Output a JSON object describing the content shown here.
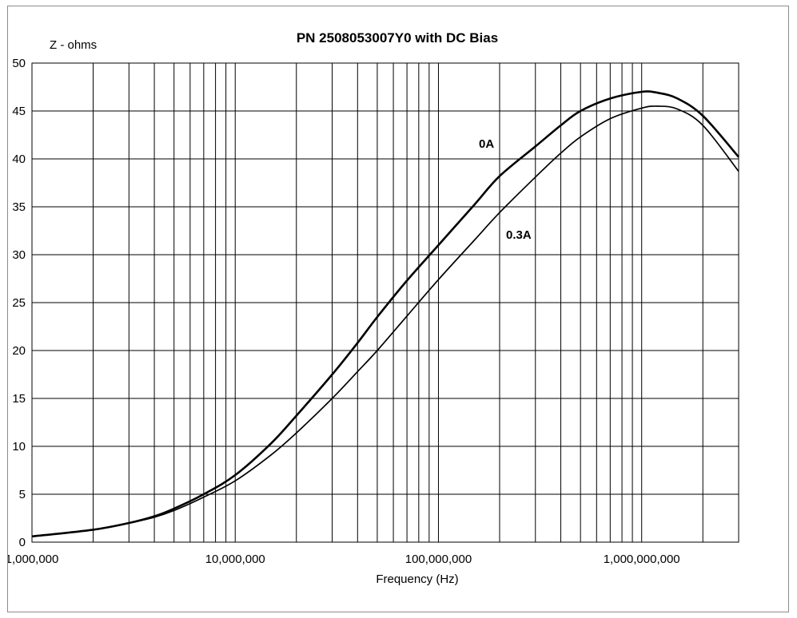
{
  "chart_data": {
    "type": "line",
    "title": "PN 2508053007Y0 with DC Bias",
    "xlabel": "Frequency (Hz)",
    "ylabel": "Z - ohms",
    "x_scale": "log",
    "xlim": [
      1000000,
      3000000000
    ],
    "ylim": [
      0,
      50
    ],
    "grid": true,
    "x_tick_values": [
      1000000,
      10000000,
      100000000,
      1000000000
    ],
    "x_tick_labels": [
      "1,000,000",
      "10,000,000",
      "100,000,000",
      "1,000,000,000"
    ],
    "y_tick_values": [
      0,
      5,
      10,
      15,
      20,
      25,
      30,
      35,
      40,
      45,
      50
    ],
    "y_tick_labels": [
      "0",
      "5",
      "10",
      "15",
      "20",
      "25",
      "30",
      "35",
      "40",
      "45",
      "50"
    ],
    "series": [
      {
        "name": "0A",
        "color": "#000000",
        "x": [
          1000000,
          2000000,
          3000000,
          4000000,
          5000000,
          7000000,
          10000000,
          15000000,
          20000000,
          30000000,
          40000000,
          50000000,
          70000000,
          100000000,
          150000000,
          200000000,
          300000000,
          400000000,
          500000000,
          700000000,
          1000000000,
          1200000000,
          1500000000,
          2000000000,
          3000000000
        ],
        "y": [
          0.6,
          1.3,
          2.0,
          2.7,
          3.5,
          5.0,
          7.0,
          10.3,
          13.2,
          17.5,
          20.8,
          23.5,
          27.3,
          31.0,
          35.2,
          38.2,
          41.3,
          43.5,
          45.0,
          46.3,
          47.0,
          46.9,
          46.3,
          44.5,
          40.2
        ]
      },
      {
        "name": "0.3A",
        "color": "#000000",
        "x": [
          1000000,
          2000000,
          3000000,
          4000000,
          5000000,
          7000000,
          10000000,
          15000000,
          20000000,
          30000000,
          40000000,
          50000000,
          70000000,
          100000000,
          150000000,
          200000000,
          300000000,
          400000000,
          500000000,
          700000000,
          1000000000,
          1200000000,
          1500000000,
          2000000000,
          3000000000
        ],
        "y": [
          0.6,
          1.3,
          2.0,
          2.6,
          3.3,
          4.7,
          6.4,
          9.1,
          11.4,
          15.0,
          17.8,
          20.0,
          23.6,
          27.4,
          31.5,
          34.4,
          38.1,
          40.6,
          42.3,
          44.2,
          45.3,
          45.5,
          45.2,
          43.5,
          38.7
        ]
      }
    ],
    "annotations": [
      "0A",
      "0.3A"
    ]
  }
}
